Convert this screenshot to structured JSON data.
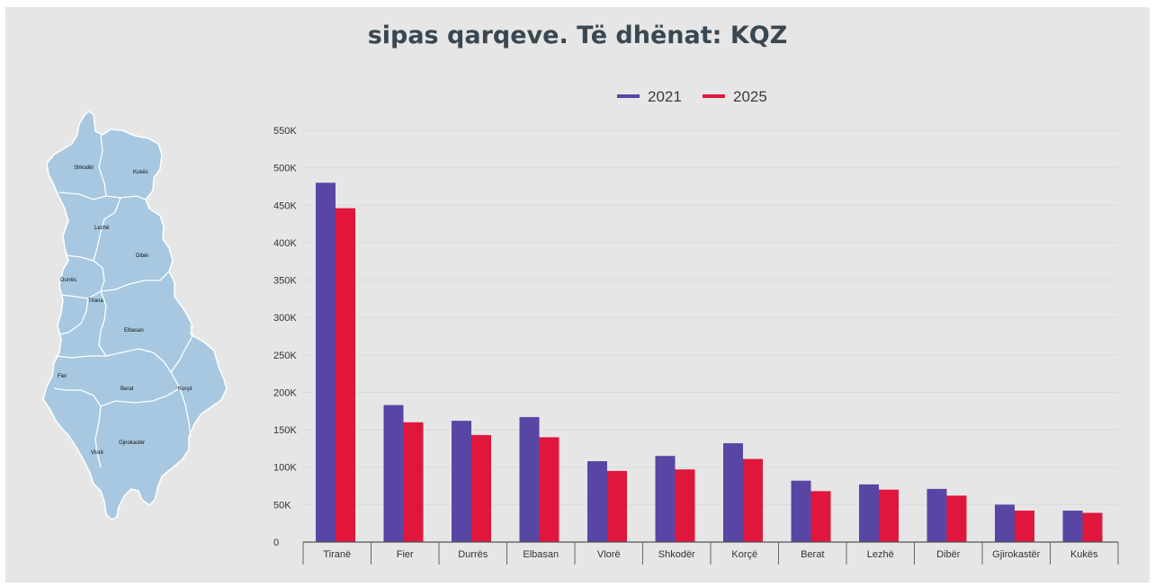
{
  "title": "sipas qarqeve. Të dhënat: KQZ",
  "colors": {
    "series_2021": "#5945a4",
    "series_2025": "#e0163d",
    "map_fill": "#a7c8e0",
    "map_stroke": "#ffffff",
    "background": "#e6e6e6"
  },
  "map": {
    "labels": [
      "Shkodër",
      "Kukës",
      "Lezhë",
      "Dibër",
      "Durrës",
      "Tirana",
      "Elbasan",
      "Fier",
      "Berat",
      "Korçë",
      "Gjirokastër",
      "Vlorë"
    ]
  },
  "chart_data": {
    "type": "bar",
    "categories": [
      "Tiranë",
      "Fier",
      "Durrës",
      "Elbasan",
      "Vlorë",
      "Shkodër",
      "Korçë",
      "Berat",
      "Lezhë",
      "Dibër",
      "Gjirokastër",
      "Kukës"
    ],
    "series": [
      {
        "name": "2021",
        "values": [
          480000,
          183000,
          162000,
          167000,
          108000,
          115000,
          132000,
          82000,
          77000,
          71000,
          50000,
          42000
        ]
      },
      {
        "name": "2025",
        "values": [
          446000,
          160000,
          143000,
          140000,
          95000,
          97000,
          111000,
          68000,
          70000,
          62000,
          42000,
          39000
        ]
      }
    ],
    "ylim": [
      0,
      550000
    ],
    "y_ticks": [
      "0",
      "50K",
      "100K",
      "150K",
      "200K",
      "250K",
      "300K",
      "350K",
      "400K",
      "450K",
      "500K",
      "550K"
    ],
    "legend_position": "top-right",
    "grid": true
  }
}
